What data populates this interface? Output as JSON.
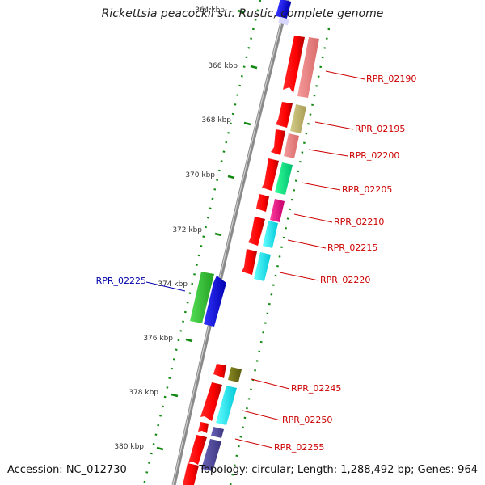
{
  "title": "Rickettsia peacockii str. Rustic, complete genome",
  "ticks": [
    {
      "label": "364 kbp",
      "pos": 364
    },
    {
      "label": "366 kbp",
      "pos": 366
    },
    {
      "label": "368 kbp",
      "pos": 368
    },
    {
      "label": "370 kbp",
      "pos": 370
    },
    {
      "label": "372 kbp",
      "pos": 372
    },
    {
      "label": "374 kbp",
      "pos": 374
    },
    {
      "label": "376 kbp",
      "pos": 376
    },
    {
      "label": "378 kbp",
      "pos": 378
    },
    {
      "label": "380 kbp",
      "pos": 380
    }
  ],
  "genes": [
    {
      "label": "RPR_02190",
      "color": "#cc0000"
    },
    {
      "label": "RPR_02195",
      "color": "#cc0000"
    },
    {
      "label": "RPR_02200",
      "color": "#cc0000"
    },
    {
      "label": "RPR_02205",
      "color": "#cc0000"
    },
    {
      "label": "RPR_02210",
      "color": "#cc0000"
    },
    {
      "label": "RPR_02215",
      "color": "#cc0000"
    },
    {
      "label": "RPR_02220",
      "color": "#cc0000"
    },
    {
      "label": "RPR_02225",
      "color": "#0000aa"
    },
    {
      "label": "RPR_02245",
      "color": "#cc0000"
    },
    {
      "label": "RPR_02250",
      "color": "#cc0000"
    },
    {
      "label": "RPR_02255",
      "color": "#cc0000"
    }
  ],
  "footer": {
    "accession": "Accession: NC_012730",
    "topology": "Topology: circular; Length: 1,288,492 bp; Genes: 964"
  }
}
